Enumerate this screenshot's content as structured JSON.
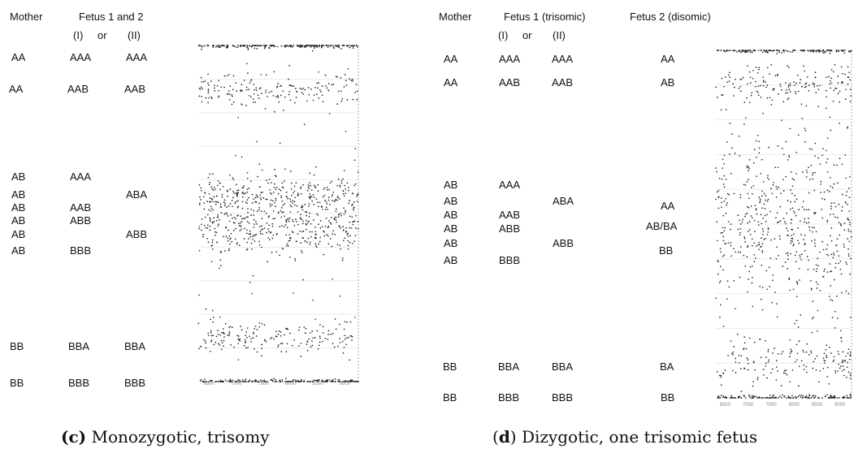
{
  "panels": {
    "c": {
      "caption_letter": "(c)",
      "caption_text": " Monozygotic, trisomy",
      "headers": {
        "mother": "Mother",
        "fetus": "Fetus 1 and 2",
        "i": "(I)",
        "or": "or",
        "ii": "(II)"
      },
      "rows": [
        {
          "mother": "AA",
          "fetus_i": "AAA",
          "fetus_ii": "AAA"
        },
        {
          "mother": "AA",
          "fetus_i": "AAB",
          "fetus_ii": "AAB"
        },
        {
          "mother": "AB",
          "fetus_i": "AAA",
          "fetus_ii": ""
        },
        {
          "mother": "AB",
          "fetus_i": "",
          "fetus_ii": "ABA"
        },
        {
          "mother": "AB",
          "fetus_i": "AAB",
          "fetus_ii": ""
        },
        {
          "mother": "AB",
          "fetus_i": "ABB",
          "fetus_ii": ""
        },
        {
          "mother": "AB",
          "fetus_i": "",
          "fetus_ii": "ABB"
        },
        {
          "mother": "AB",
          "fetus_i": "BBB",
          "fetus_ii": ""
        },
        {
          "mother": "BB",
          "fetus_i": "BBA",
          "fetus_ii": "BBA"
        },
        {
          "mother": "BB",
          "fetus_i": "BBB",
          "fetus_ii": "BBB"
        }
      ]
    },
    "d": {
      "caption_letter": "(d)",
      "caption_text": " Dizygotic, one trisomic fetus",
      "headers": {
        "mother": "Mother",
        "fetus1": "Fetus 1 (trisomic)",
        "fetus2": "Fetus 2 (disomic)",
        "i": "(I)",
        "or": "or",
        "ii": "(II)"
      },
      "rows": [
        {
          "mother": "AA",
          "fetus_i": "AAA",
          "fetus_ii": "AAA",
          "fetus2": "AA"
        },
        {
          "mother": "AA",
          "fetus_i": "AAB",
          "fetus_ii": "AAB",
          "fetus2": "AB"
        },
        {
          "mother": "AB",
          "fetus_i": "AAA",
          "fetus_ii": "",
          "fetus2": ""
        },
        {
          "mother": "AB",
          "fetus_i": "",
          "fetus_ii": "ABA",
          "fetus2": "AA"
        },
        {
          "mother": "AB",
          "fetus_i": "AAB",
          "fetus_ii": "",
          "fetus2": "AB/BA"
        },
        {
          "mother": "AB",
          "fetus_i": "ABB",
          "fetus_ii": "",
          "fetus2": ""
        },
        {
          "mother": "AB",
          "fetus_i": "",
          "fetus_ii": "ABB",
          "fetus2": "BB"
        },
        {
          "mother": "AB",
          "fetus_i": "BBB",
          "fetus_ii": "",
          "fetus2": ""
        },
        {
          "mother": "BB",
          "fetus_i": "BBA",
          "fetus_ii": "BBA",
          "fetus2": "BA"
        },
        {
          "mother": "BB",
          "fetus_i": "BBB",
          "fetus_ii": "BBB",
          "fetus2": "BB"
        }
      ]
    }
  },
  "chart_data": [
    {
      "type": "scatter",
      "panel": "c",
      "x_ticks": [
        6500,
        7000,
        7500,
        8000,
        8500,
        9000
      ],
      "xlim": [
        6300,
        9250
      ],
      "ylim": [
        0,
        1
      ],
      "grid": true,
      "bands": [
        {
          "center": 1.0,
          "spread": 0.004,
          "count": 220
        },
        {
          "center": 0.87,
          "spread": 0.025,
          "count": 170
        },
        {
          "center": 0.55,
          "spread": 0.035,
          "count": 320
        },
        {
          "center": 0.45,
          "spread": 0.035,
          "count": 320
        },
        {
          "center": 0.13,
          "spread": 0.025,
          "count": 170
        },
        {
          "center": 0.0,
          "spread": 0.004,
          "count": 220
        }
      ],
      "scatter_between_bands": 60
    },
    {
      "type": "scatter",
      "panel": "d",
      "x_ticks": [
        6500,
        7000,
        7500,
        8000,
        8500,
        9000
      ],
      "xlim": [
        6300,
        9250
      ],
      "ylim": [
        0,
        1
      ],
      "grid": true,
      "bands": [
        {
          "center": 1.0,
          "spread": 0.004,
          "count": 160
        },
        {
          "center": 0.9,
          "spread": 0.03,
          "count": 150
        },
        {
          "center": 0.5,
          "spread": 0.13,
          "count": 520
        },
        {
          "center": 0.1,
          "spread": 0.03,
          "count": 150
        },
        {
          "center": 0.0,
          "spread": 0.004,
          "count": 160
        }
      ],
      "scatter_between_bands": 50
    }
  ]
}
